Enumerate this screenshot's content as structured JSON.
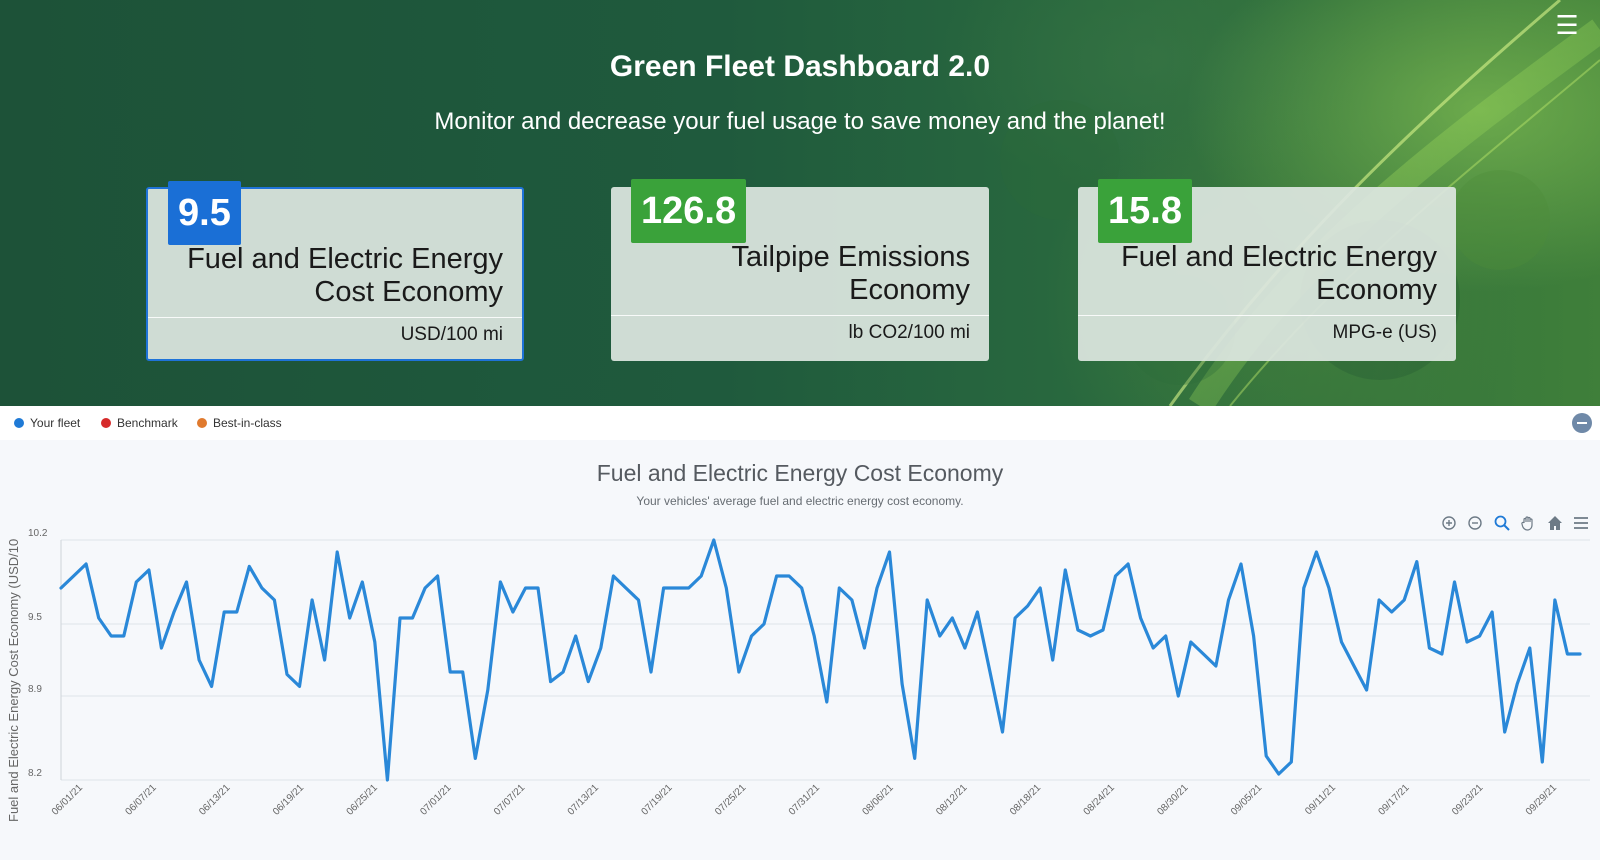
{
  "header": {
    "title": "Green Fleet Dashboard 2.0",
    "subtitle": "Monitor and decrease your fuel usage to save money and the planet!",
    "menu_icon": "hamburger-menu-icon"
  },
  "kpis": [
    {
      "value": "9.5",
      "label": "Fuel and Electric Energy Cost Economy",
      "unit": "USD/100 mi",
      "badge_color": "#1a6fd6",
      "selected": true
    },
    {
      "value": "126.8",
      "label": "Tailpipe Emissions Economy",
      "unit": "lb CO2/100 mi",
      "badge_color": "#3aa23a",
      "selected": false
    },
    {
      "value": "15.8",
      "label": "Fuel and Electric Energy Economy",
      "unit": "MPG-e (US)",
      "badge_color": "#3aa23a",
      "selected": false
    }
  ],
  "legend": [
    {
      "label": "Your fleet",
      "color": "#1f7ad6"
    },
    {
      "label": "Benchmark",
      "color": "#d62a2a"
    },
    {
      "label": "Best-in-class",
      "color": "#e07a2e"
    }
  ],
  "toolbar": [
    "zoom-in-icon",
    "zoom-out-icon",
    "zoom-selection-icon",
    "pan-hand-icon",
    "reset-home-icon",
    "chart-menu-icon"
  ],
  "chart_data": {
    "type": "line",
    "title": "Fuel and Electric Energy Cost Economy",
    "subtitle": "Your vehicles' average fuel and electric energy cost economy.",
    "ylabel": "Fuel and Electric Energy Cost Economy (USD/10",
    "xlabel": "",
    "ylim": [
      8.2,
      10.2
    ],
    "y_ticks": [
      "10.2",
      "9.5",
      "8.9",
      "8.2"
    ],
    "x_ticks": [
      "06/01/21",
      "06/07/21",
      "06/13/21",
      "06/19/21",
      "06/25/21",
      "07/01/21",
      "07/07/21",
      "07/13/21",
      "07/19/21",
      "07/25/21",
      "07/31/21",
      "08/06/21",
      "08/12/21",
      "08/18/21",
      "08/24/21",
      "08/30/21",
      "09/05/21",
      "09/11/21",
      "09/17/21",
      "09/23/21",
      "09/29/21"
    ],
    "grid": true,
    "legend_position": "top-left",
    "series": [
      {
        "name": "Your fleet",
        "color": "#2a88d8",
        "x_start": "06/01/21",
        "x_end": "09/30/21",
        "values": [
          9.8,
          9.9,
          10.0,
          9.55,
          9.4,
          9.4,
          9.85,
          9.95,
          9.3,
          9.6,
          9.85,
          9.2,
          8.98,
          9.6,
          9.6,
          9.98,
          9.8,
          9.7,
          9.08,
          8.98,
          9.7,
          9.2,
          10.1,
          9.55,
          9.85,
          9.35,
          8.2,
          9.55,
          9.55,
          9.8,
          9.9,
          9.1,
          9.1,
          8.38,
          8.95,
          9.85,
          9.6,
          9.8,
          9.8,
          9.02,
          9.1,
          9.4,
          9.02,
          9.3,
          9.9,
          9.8,
          9.7,
          9.1,
          9.8,
          9.8,
          9.8,
          9.9,
          10.2,
          9.8,
          9.1,
          9.4,
          9.5,
          9.9,
          9.9,
          9.8,
          9.4,
          8.85,
          9.8,
          9.7,
          9.3,
          9.8,
          10.1,
          9.0,
          8.38,
          9.7,
          9.4,
          9.55,
          9.3,
          9.6,
          9.1,
          8.6,
          9.55,
          9.65,
          9.8,
          9.2,
          9.95,
          9.45,
          9.4,
          9.45,
          9.9,
          10.0,
          9.55,
          9.3,
          9.4,
          8.9,
          9.35,
          9.25,
          9.15,
          9.7,
          10.0,
          9.4,
          8.4,
          8.25,
          8.35,
          9.8,
          10.1,
          9.8,
          9.35,
          9.15,
          8.95,
          9.7,
          9.6,
          9.7,
          10.02,
          9.3,
          9.25,
          9.85,
          9.35,
          9.4,
          9.6,
          8.6,
          9.0,
          9.3,
          8.35,
          9.7,
          9.25,
          9.25
        ]
      }
    ]
  }
}
